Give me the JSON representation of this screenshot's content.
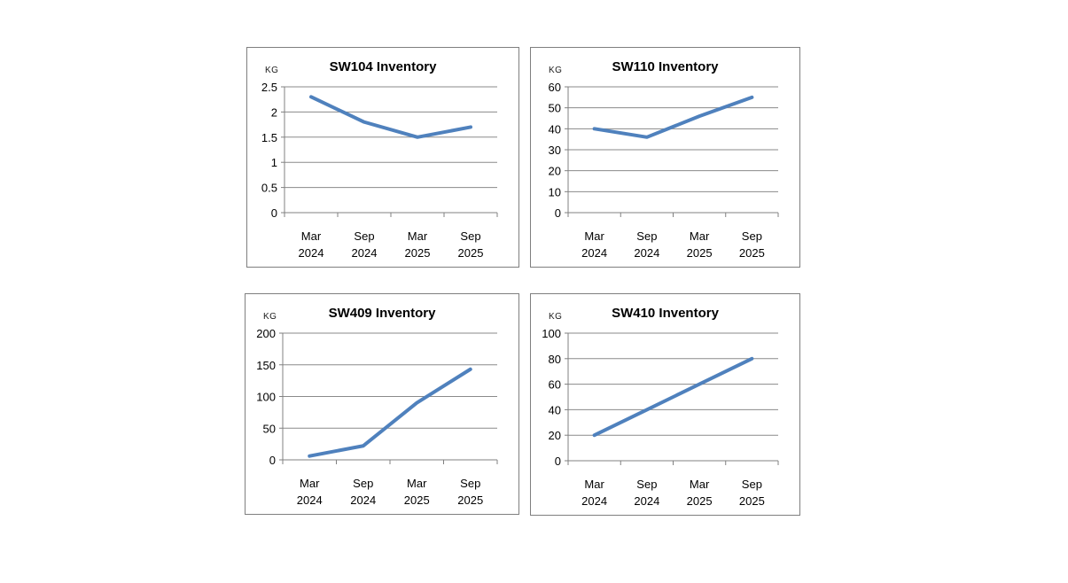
{
  "page": {
    "background": "#ffffff"
  },
  "colors": {
    "series_line": "#4F81BD",
    "gridline": "#8a8a8a",
    "axis": "#808080",
    "panel_border": "#7f7f7f",
    "text": "#000000"
  },
  "chart_data": [
    {
      "type": "line",
      "title": "SW104 Inventory",
      "unit_label": "KG",
      "categories": [
        "Mar 2024",
        "Sep 2024",
        "Mar 2025",
        "Sep 2025"
      ],
      "values": [
        2.3,
        1.8,
        1.5,
        1.7
      ],
      "yticks": [
        0,
        0.5,
        1,
        1.5,
        2,
        2.5
      ],
      "ytick_labels": [
        "0",
        "0.5",
        "1",
        "1.5",
        "2",
        "2.5"
      ],
      "ylim": [
        0,
        2.5
      ],
      "xlabel": "",
      "ylabel": "KG",
      "grid": true,
      "legend": "none",
      "line_color": "#4F81BD"
    },
    {
      "type": "line",
      "title": "SW110 Inventory",
      "unit_label": "KG",
      "categories": [
        "Mar 2024",
        "Sep 2024",
        "Mar 2025",
        "Sep 2025"
      ],
      "values": [
        40,
        36,
        46,
        55
      ],
      "yticks": [
        0,
        10,
        20,
        30,
        40,
        50,
        60
      ],
      "ytick_labels": [
        "0",
        "10",
        "20",
        "30",
        "40",
        "50",
        "60"
      ],
      "ylim": [
        0,
        60
      ],
      "xlabel": "",
      "ylabel": "KG",
      "grid": true,
      "legend": "none",
      "line_color": "#4F81BD"
    },
    {
      "type": "line",
      "title": "SW409 Inventory",
      "unit_label": "KG",
      "categories": [
        "Mar 2024",
        "Sep 2024",
        "Mar 2025",
        "Sep 2025"
      ],
      "values": [
        6,
        22,
        90,
        143
      ],
      "yticks": [
        0,
        50,
        100,
        150,
        200
      ],
      "ytick_labels": [
        "0",
        "50",
        "100",
        "150",
        "200"
      ],
      "ylim": [
        0,
        200
      ],
      "xlabel": "",
      "ylabel": "KG",
      "grid": true,
      "legend": "none",
      "line_color": "#4F81BD"
    },
    {
      "type": "line",
      "title": "SW410 Inventory",
      "unit_label": "KG",
      "categories": [
        "Mar 2024",
        "Sep 2024",
        "Mar 2025",
        "Sep 2025"
      ],
      "values": [
        20,
        40,
        60,
        80
      ],
      "yticks": [
        0,
        20,
        40,
        60,
        80,
        100
      ],
      "ytick_labels": [
        "0",
        "20",
        "40",
        "60",
        "80",
        "100"
      ],
      "ylim": [
        0,
        100
      ],
      "xlabel": "",
      "ylabel": "KG",
      "grid": true,
      "legend": "none",
      "line_color": "#4F81BD"
    }
  ]
}
